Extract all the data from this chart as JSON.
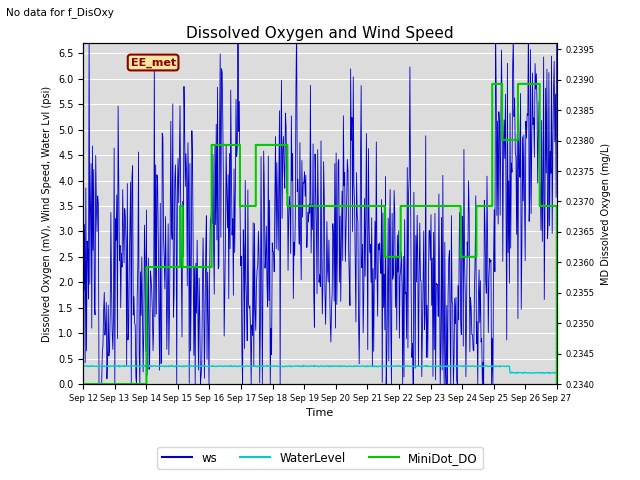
{
  "title": "Dissolved Oxygen and Wind Speed",
  "top_left_note": "No data for f_DisOxy",
  "annotation_text": "EE_met",
  "xlabel": "Time",
  "ylabel_left": "Dissolved Oxygen (mV), Wind Speed, Water Lvl (psi)",
  "ylabel_right": "MD Dissolved Oxygen (mg/L)",
  "ylim_left": [
    0.0,
    6.7
  ],
  "ylim_right": [
    0.234,
    0.2396
  ],
  "xlim": [
    0,
    15
  ],
  "xtick_labels": [
    "Sep 12",
    "Sep 13",
    "Sep 14",
    "Sep 15",
    "Sep 16",
    "Sep 17",
    "Sep 18",
    "Sep 19",
    "Sep 20",
    "Sep 21",
    "Sep 22",
    "Sep 23",
    "Sep 24",
    "Sep 25",
    "Sep 26",
    "Sep 27"
  ],
  "ytick_left": [
    0.0,
    0.5,
    1.0,
    1.5,
    2.0,
    2.5,
    3.0,
    3.5,
    4.0,
    4.5,
    5.0,
    5.5,
    6.0,
    6.5
  ],
  "ytick_right": [
    0.234,
    0.2345,
    0.235,
    0.2355,
    0.236,
    0.2365,
    0.237,
    0.2375,
    0.238,
    0.2385,
    0.239,
    0.2395
  ],
  "ws_color": "#0000cc",
  "water_level_color": "#00cccc",
  "minidot_color": "#00cc00",
  "background_color": "#dcdcdc",
  "grid_color": "#ffffff",
  "legend_labels": [
    "ws",
    "WaterLevel",
    "MiniDot_DO"
  ],
  "figsize": [
    6.4,
    4.8
  ],
  "dpi": 100
}
